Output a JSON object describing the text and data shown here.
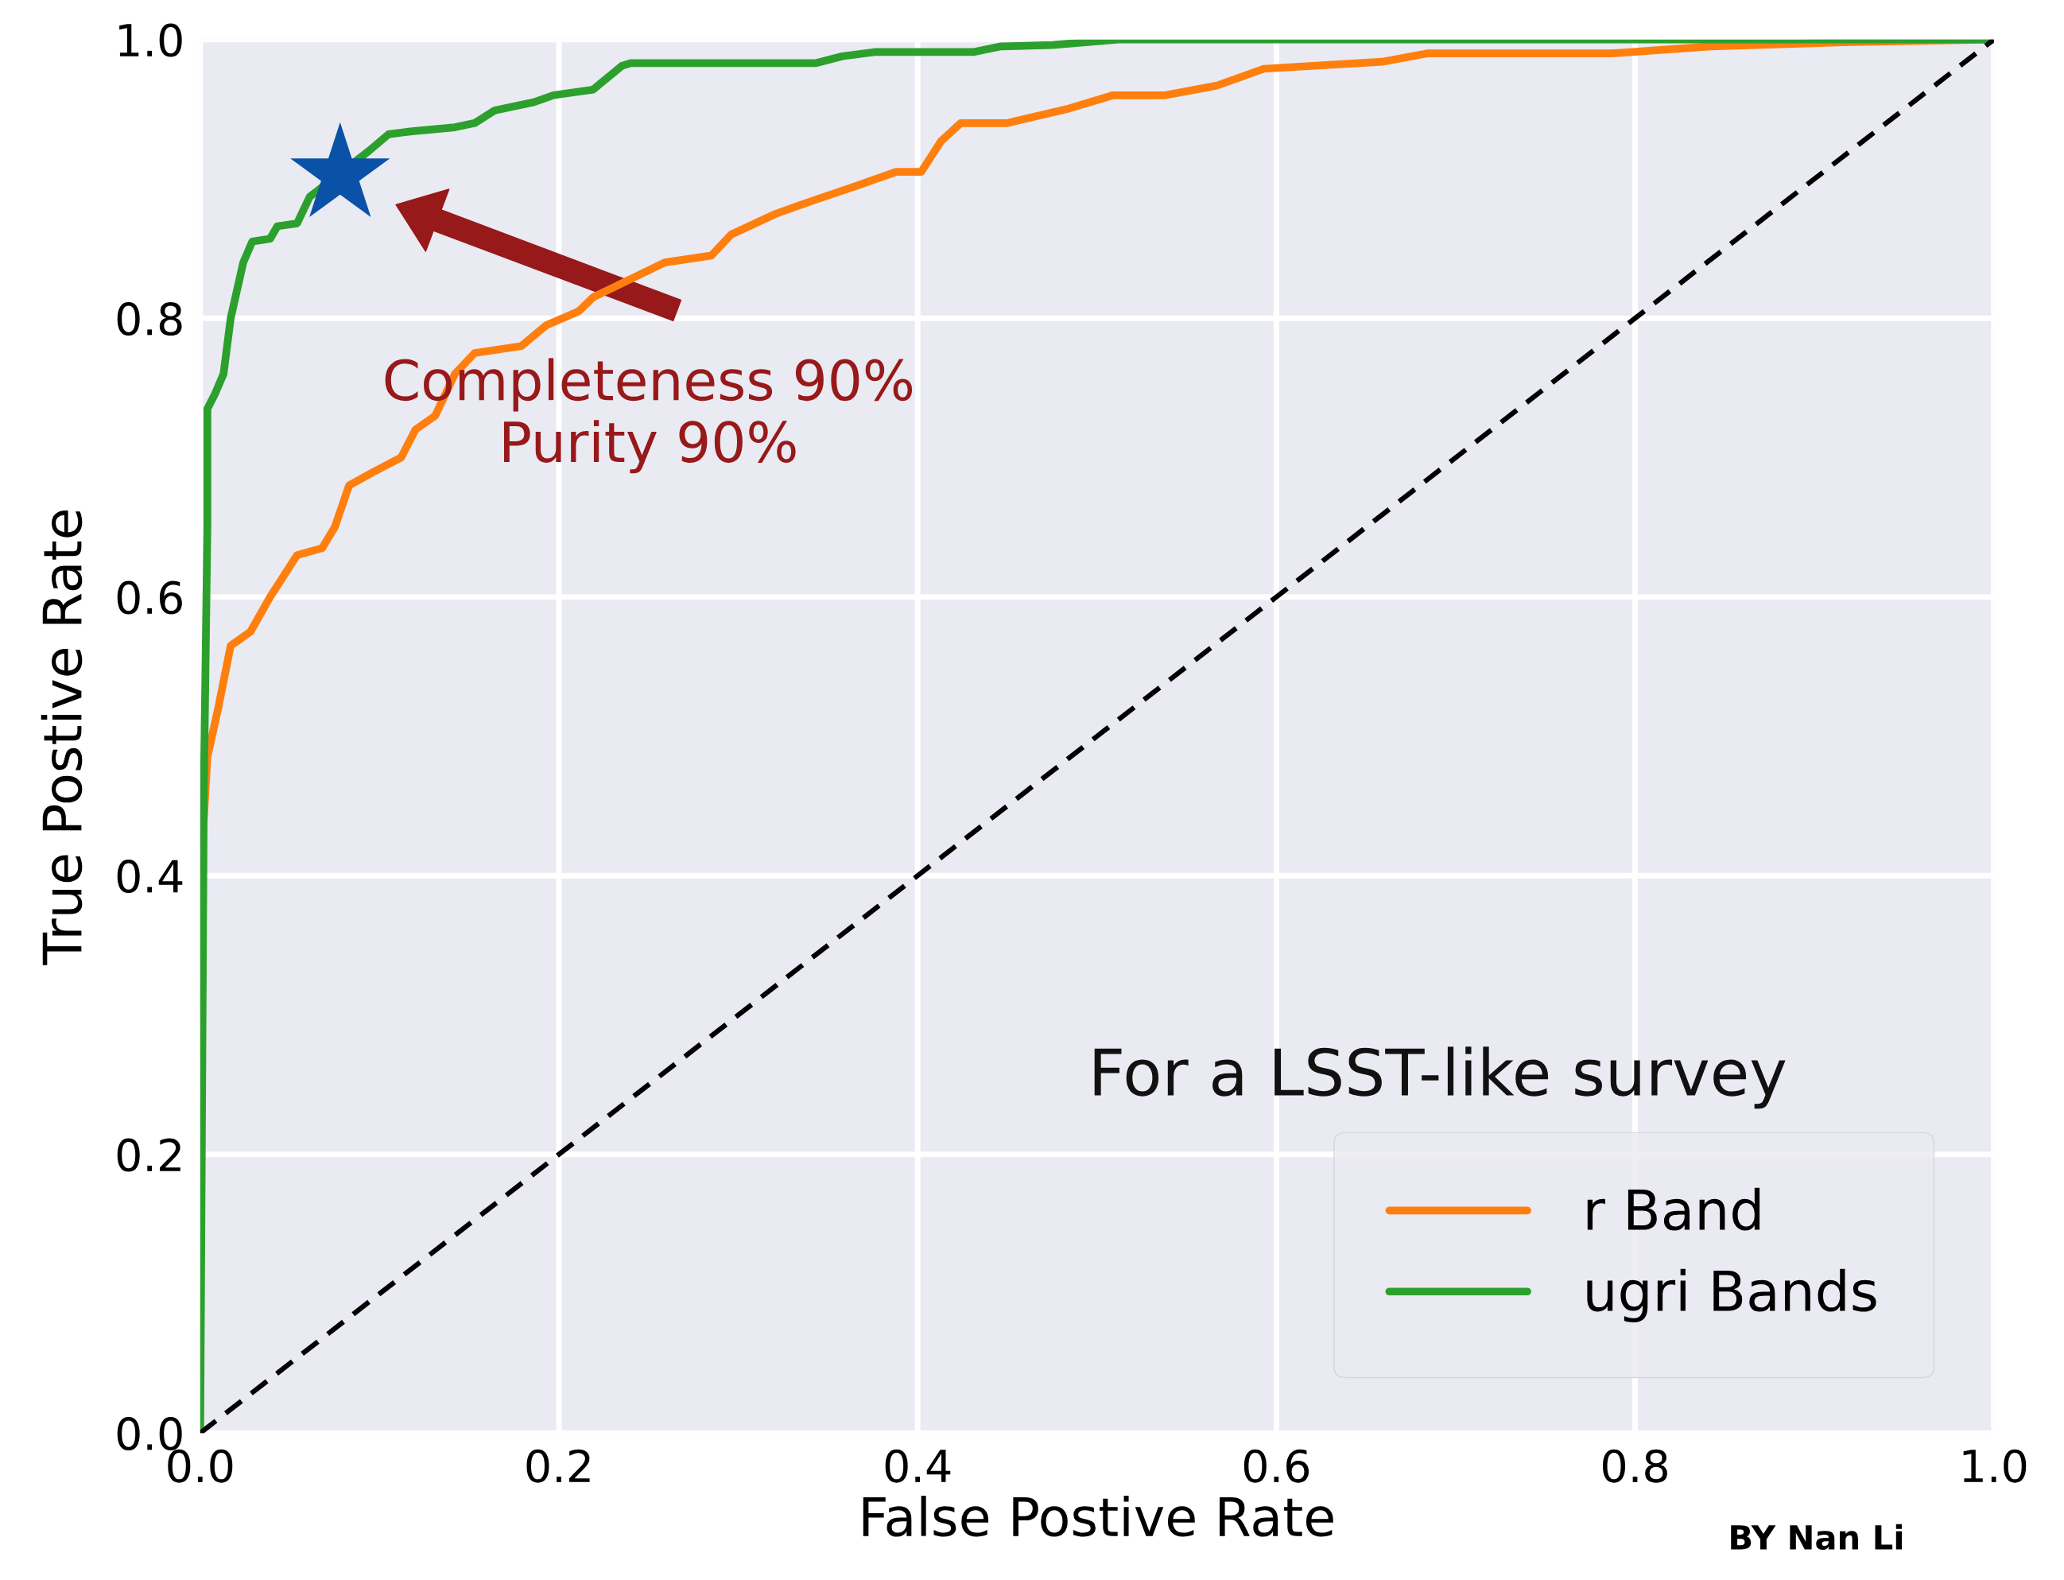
{
  "chart_data": {
    "type": "line",
    "xlabel": "False Postive Rate",
    "ylabel": "True Postive Rate",
    "xlim": [
      0,
      1
    ],
    "ylim": [
      0,
      1
    ],
    "xticks": [
      {
        "value": 0,
        "label": "0.0"
      },
      0.2,
      0.4,
      0.6,
      0.8,
      {
        "value": 1,
        "label": "1.0"
      }
    ],
    "yticks": [
      {
        "value": 0,
        "label": "0.0"
      },
      0.2,
      0.4,
      0.6,
      0.8,
      {
        "value": 1,
        "label": "1.0"
      }
    ],
    "grid": true,
    "legend": "bottom right",
    "series": [
      {
        "name": "r Band",
        "color": "#ff7f0e",
        "line_style": "solid",
        "x": [
          0.002,
          0.004,
          0.01,
          0.017,
          0.028,
          0.039,
          0.054,
          0.068,
          0.075,
          0.083,
          0.097,
          0.112,
          0.12,
          0.131,
          0.142,
          0.153,
          0.179,
          0.193,
          0.211,
          0.219,
          0.235,
          0.259,
          0.285,
          0.296,
          0.321,
          0.343,
          0.366,
          0.388,
          0.402,
          0.413,
          0.424,
          0.45,
          0.483,
          0.509,
          0.538,
          0.567,
          0.593,
          0.659,
          0.684,
          0.787,
          0.842,
          0.916,
          1.0
        ],
        "values": [
          0.44,
          0.485,
          0.52,
          0.565,
          0.575,
          0.6,
          0.63,
          0.635,
          0.65,
          0.68,
          0.69,
          0.7,
          0.72,
          0.73,
          0.76,
          0.775,
          0.78,
          0.795,
          0.805,
          0.815,
          0.825,
          0.84,
          0.845,
          0.86,
          0.875,
          0.885,
          0.895,
          0.905,
          0.905,
          0.927,
          0.94,
          0.94,
          0.95,
          0.96,
          0.96,
          0.967,
          0.979,
          0.984,
          0.99,
          0.99,
          0.995,
          0.998,
          1.0
        ]
      },
      {
        "name": "ugri Bands",
        "color": "#2ca02c",
        "line_style": "solid",
        "x": [
          0,
          0.002,
          0.004,
          0.004,
          0.008,
          0.013,
          0.017,
          0.024,
          0.029,
          0.039,
          0.043,
          0.054,
          0.061,
          0.094,
          0.105,
          0.117,
          0.142,
          0.153,
          0.164,
          0.186,
          0.197,
          0.219,
          0.235,
          0.24,
          0.343,
          0.358,
          0.376,
          0.431,
          0.446,
          0.475,
          0.512,
          1.0
        ],
        "values": [
          0,
          0.46,
          0.65,
          0.735,
          0.745,
          0.76,
          0.8,
          0.84,
          0.855,
          0.857,
          0.866,
          0.868,
          0.887,
          0.92,
          0.932,
          0.934,
          0.937,
          0.94,
          0.949,
          0.955,
          0.96,
          0.964,
          0.981,
          0.983,
          0.983,
          0.988,
          0.991,
          0.991,
          0.995,
          0.996,
          1.0,
          1.0
        ]
      },
      {
        "type": "line",
        "color": "#000000",
        "line_style": "dashed",
        "x": [
          0,
          1
        ],
        "values": [
          0,
          1
        ]
      },
      {
        "type": "scatter",
        "color": "#0a52a8",
        "marker": "star",
        "x": [
          0.078
        ],
        "values": [
          0.903
        ]
      }
    ],
    "annotations": [
      "Completeness 90%\nPurity 90%",
      "For a LSST-like survey",
      "BY Nan Li"
    ]
  }
}
